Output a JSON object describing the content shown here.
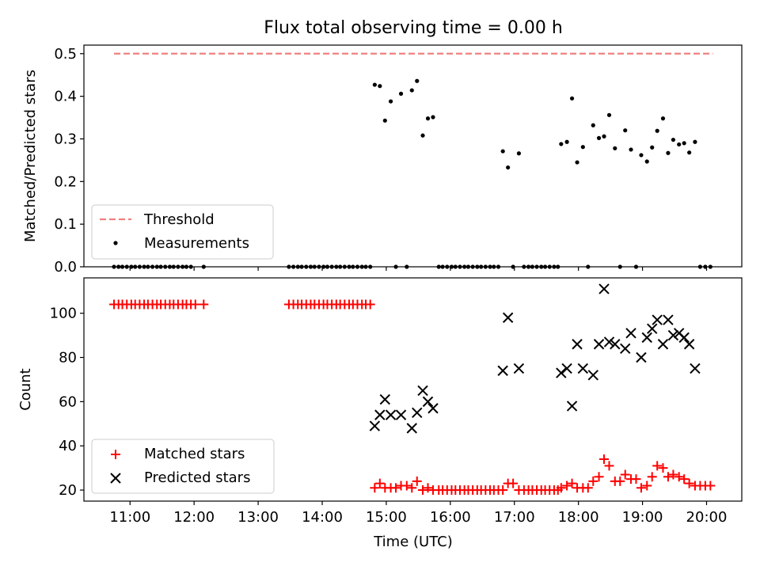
{
  "figure": {
    "title": "Flux total observing time = 0.00 h",
    "xlabel": "Time (UTC)",
    "x_ticks": [
      "11:00",
      "12:00",
      "13:00",
      "14:00",
      "15:00",
      "16:00",
      "17:00",
      "18:00",
      "19:00",
      "20:00"
    ]
  },
  "chart_data": [
    {
      "type": "scatter",
      "ylabel": "Matched/Predicted stars",
      "xlim": [
        10.28,
        20.55
      ],
      "ylim": [
        0,
        0.52
      ],
      "y_ticks": [
        0.0,
        0.1,
        0.2,
        0.3,
        0.4,
        0.5
      ],
      "legend_position": "lower-left",
      "threshold": {
        "name": "Threshold",
        "value": 0.5,
        "x_range": [
          10.75,
          20.1
        ],
        "color": "#f08080",
        "style": "dashed"
      },
      "series": [
        {
          "name": "Measurements",
          "marker": "dot",
          "color": "#000000",
          "points": [
            [
              10.75,
              0
            ],
            [
              10.82,
              0
            ],
            [
              10.88,
              0
            ],
            [
              10.95,
              0
            ],
            [
              11.02,
              0
            ],
            [
              11.08,
              0
            ],
            [
              11.15,
              0
            ],
            [
              11.22,
              0
            ],
            [
              11.28,
              0
            ],
            [
              11.35,
              0
            ],
            [
              11.42,
              0
            ],
            [
              11.48,
              0
            ],
            [
              11.55,
              0
            ],
            [
              11.62,
              0
            ],
            [
              11.68,
              0
            ],
            [
              11.75,
              0
            ],
            [
              11.82,
              0
            ],
            [
              11.88,
              0
            ],
            [
              11.95,
              0
            ],
            [
              12.15,
              0
            ],
            [
              13.48,
              0
            ],
            [
              13.55,
              0
            ],
            [
              13.62,
              0
            ],
            [
              13.68,
              0
            ],
            [
              13.75,
              0
            ],
            [
              13.82,
              0
            ],
            [
              13.88,
              0
            ],
            [
              13.95,
              0
            ],
            [
              14.02,
              0
            ],
            [
              14.08,
              0
            ],
            [
              14.15,
              0
            ],
            [
              14.22,
              0
            ],
            [
              14.28,
              0
            ],
            [
              14.35,
              0
            ],
            [
              14.42,
              0
            ],
            [
              14.48,
              0
            ],
            [
              14.55,
              0
            ],
            [
              14.62,
              0
            ],
            [
              14.68,
              0
            ],
            [
              14.75,
              0
            ],
            [
              14.82,
              0.427
            ],
            [
              14.9,
              0.424
            ],
            [
              14.98,
              0.343
            ],
            [
              15.07,
              0.388
            ],
            [
              15.15,
              0.0
            ],
            [
              15.23,
              0.406
            ],
            [
              15.32,
              0.0
            ],
            [
              15.4,
              0.414
            ],
            [
              15.48,
              0.436
            ],
            [
              15.57,
              0.308
            ],
            [
              15.65,
              0.348
            ],
            [
              15.73,
              0.351
            ],
            [
              15.82,
              0
            ],
            [
              15.88,
              0
            ],
            [
              15.95,
              0
            ],
            [
              16.02,
              0
            ],
            [
              16.08,
              0
            ],
            [
              16.15,
              0
            ],
            [
              16.22,
              0
            ],
            [
              16.28,
              0
            ],
            [
              16.35,
              0
            ],
            [
              16.42,
              0
            ],
            [
              16.48,
              0
            ],
            [
              16.55,
              0
            ],
            [
              16.62,
              0
            ],
            [
              16.68,
              0
            ],
            [
              16.75,
              0
            ],
            [
              16.82,
              0.271
            ],
            [
              16.9,
              0.233
            ],
            [
              16.98,
              0.0
            ],
            [
              17.07,
              0.266
            ],
            [
              17.15,
              0
            ],
            [
              17.22,
              0
            ],
            [
              17.28,
              0
            ],
            [
              17.35,
              0
            ],
            [
              17.42,
              0
            ],
            [
              17.48,
              0
            ],
            [
              17.55,
              0
            ],
            [
              17.62,
              0
            ],
            [
              17.68,
              0
            ],
            [
              17.73,
              0.288
            ],
            [
              17.82,
              0.293
            ],
            [
              17.9,
              0.395
            ],
            [
              17.98,
              0.245
            ],
            [
              18.07,
              0.281
            ],
            [
              18.15,
              0.0
            ],
            [
              18.23,
              0.332
            ],
            [
              18.32,
              0.302
            ],
            [
              18.4,
              0.306
            ],
            [
              18.48,
              0.356
            ],
            [
              18.57,
              0.278
            ],
            [
              18.65,
              0.0
            ],
            [
              18.73,
              0.32
            ],
            [
              18.82,
              0.275
            ],
            [
              18.9,
              0.0
            ],
            [
              18.98,
              0.262
            ],
            [
              19.07,
              0.247
            ],
            [
              19.15,
              0.28
            ],
            [
              19.23,
              0.319
            ],
            [
              19.32,
              0.348
            ],
            [
              19.4,
              0.267
            ],
            [
              19.48,
              0.298
            ],
            [
              19.57,
              0.287
            ],
            [
              19.65,
              0.29
            ],
            [
              19.73,
              0.268
            ],
            [
              19.82,
              0.293
            ],
            [
              19.9,
              0
            ],
            [
              19.98,
              0
            ],
            [
              20.06,
              0
            ]
          ]
        }
      ]
    },
    {
      "type": "scatter",
      "ylabel": "Count",
      "xlim": [
        10.28,
        20.55
      ],
      "ylim": [
        15,
        116
      ],
      "y_ticks": [
        20,
        40,
        60,
        80,
        100
      ],
      "legend_position": "lower-left",
      "series": [
        {
          "name": "Matched stars",
          "marker": "plus",
          "color": "#ff0000",
          "points": [
            [
              10.75,
              104
            ],
            [
              10.82,
              104
            ],
            [
              10.88,
              104
            ],
            [
              10.95,
              104
            ],
            [
              11.02,
              104
            ],
            [
              11.08,
              104
            ],
            [
              11.15,
              104
            ],
            [
              11.22,
              104
            ],
            [
              11.28,
              104
            ],
            [
              11.35,
              104
            ],
            [
              11.42,
              104
            ],
            [
              11.48,
              104
            ],
            [
              11.55,
              104
            ],
            [
              11.62,
              104
            ],
            [
              11.68,
              104
            ],
            [
              11.75,
              104
            ],
            [
              11.82,
              104
            ],
            [
              11.88,
              104
            ],
            [
              11.95,
              104
            ],
            [
              12.02,
              104
            ],
            [
              12.15,
              104
            ],
            [
              13.48,
              104
            ],
            [
              13.55,
              104
            ],
            [
              13.62,
              104
            ],
            [
              13.68,
              104
            ],
            [
              13.75,
              104
            ],
            [
              13.82,
              104
            ],
            [
              13.88,
              104
            ],
            [
              13.95,
              104
            ],
            [
              14.02,
              104
            ],
            [
              14.08,
              104
            ],
            [
              14.15,
              104
            ],
            [
              14.22,
              104
            ],
            [
              14.28,
              104
            ],
            [
              14.35,
              104
            ],
            [
              14.42,
              104
            ],
            [
              14.48,
              104
            ],
            [
              14.55,
              104
            ],
            [
              14.62,
              104
            ],
            [
              14.68,
              104
            ],
            [
              14.75,
              104
            ],
            [
              14.82,
              21
            ],
            [
              14.9,
              23
            ],
            [
              14.98,
              21
            ],
            [
              15.07,
              21
            ],
            [
              15.15,
              21
            ],
            [
              15.23,
              22
            ],
            [
              15.32,
              22
            ],
            [
              15.4,
              21
            ],
            [
              15.48,
              24
            ],
            [
              15.57,
              20
            ],
            [
              15.65,
              21
            ],
            [
              15.73,
              20
            ],
            [
              15.82,
              20
            ],
            [
              15.88,
              20
            ],
            [
              15.95,
              20
            ],
            [
              16.02,
              20
            ],
            [
              16.08,
              20
            ],
            [
              16.15,
              20
            ],
            [
              16.22,
              20
            ],
            [
              16.28,
              20
            ],
            [
              16.35,
              20
            ],
            [
              16.42,
              20
            ],
            [
              16.48,
              20
            ],
            [
              16.55,
              20
            ],
            [
              16.62,
              20
            ],
            [
              16.68,
              20
            ],
            [
              16.75,
              20
            ],
            [
              16.82,
              20
            ],
            [
              16.9,
              23
            ],
            [
              16.98,
              23
            ],
            [
              17.07,
              20
            ],
            [
              17.15,
              20
            ],
            [
              17.22,
              20
            ],
            [
              17.28,
              20
            ],
            [
              17.35,
              20
            ],
            [
              17.42,
              20
            ],
            [
              17.48,
              20
            ],
            [
              17.55,
              20
            ],
            [
              17.62,
              20
            ],
            [
              17.68,
              20
            ],
            [
              17.73,
              21
            ],
            [
              17.82,
              22
            ],
            [
              17.9,
              23
            ],
            [
              17.98,
              21
            ],
            [
              18.07,
              21
            ],
            [
              18.15,
              21
            ],
            [
              18.23,
              24
            ],
            [
              18.32,
              26
            ],
            [
              18.4,
              34
            ],
            [
              18.48,
              31
            ],
            [
              18.57,
              24
            ],
            [
              18.65,
              24
            ],
            [
              18.73,
              27
            ],
            [
              18.82,
              25
            ],
            [
              18.9,
              25
            ],
            [
              18.98,
              21
            ],
            [
              19.07,
              22
            ],
            [
              19.15,
              26
            ],
            [
              19.23,
              31
            ],
            [
              19.32,
              30
            ],
            [
              19.4,
              26
            ],
            [
              19.48,
              27
            ],
            [
              19.57,
              26
            ],
            [
              19.65,
              25
            ],
            [
              19.73,
              23
            ],
            [
              19.82,
              22
            ],
            [
              19.9,
              22
            ],
            [
              19.98,
              22
            ],
            [
              20.06,
              22
            ]
          ]
        },
        {
          "name": "Predicted stars",
          "marker": "x",
          "color": "#000000",
          "points": [
            [
              14.82,
              49
            ],
            [
              14.9,
              54
            ],
            [
              14.98,
              61
            ],
            [
              15.07,
              54
            ],
            [
              15.23,
              54
            ],
            [
              15.4,
              48
            ],
            [
              15.48,
              55
            ],
            [
              15.57,
              65
            ],
            [
              15.65,
              60
            ],
            [
              15.73,
              57
            ],
            [
              16.82,
              74
            ],
            [
              16.9,
              98
            ],
            [
              17.07,
              75
            ],
            [
              17.73,
              73
            ],
            [
              17.82,
              75
            ],
            [
              17.9,
              58
            ],
            [
              17.98,
              86
            ],
            [
              18.07,
              75
            ],
            [
              18.23,
              72
            ],
            [
              18.32,
              86
            ],
            [
              18.4,
              111
            ],
            [
              18.48,
              87
            ],
            [
              18.57,
              86
            ],
            [
              18.73,
              84
            ],
            [
              18.82,
              91
            ],
            [
              18.98,
              80
            ],
            [
              19.07,
              89
            ],
            [
              19.15,
              93
            ],
            [
              19.23,
              97
            ],
            [
              19.32,
              86
            ],
            [
              19.4,
              97
            ],
            [
              19.48,
              90
            ],
            [
              19.57,
              91
            ],
            [
              19.65,
              89
            ],
            [
              19.73,
              86
            ],
            [
              19.82,
              75
            ]
          ]
        }
      ]
    }
  ]
}
